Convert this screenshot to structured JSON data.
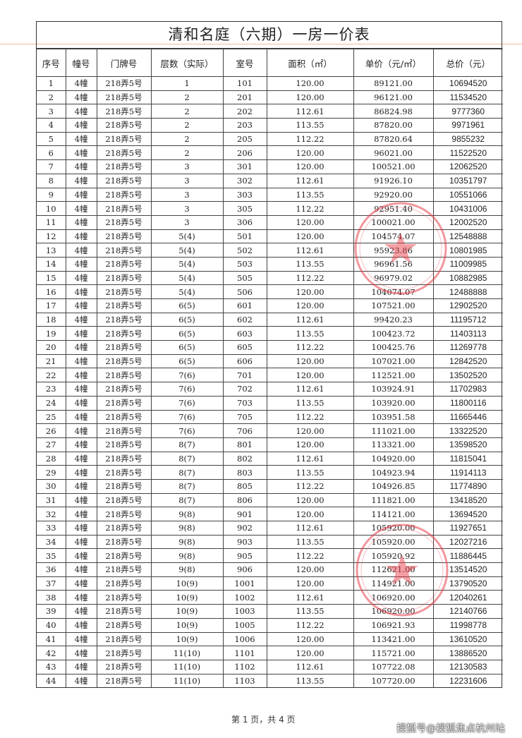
{
  "title": "清和名庭（六期）一房一价表",
  "columns": [
    "序号",
    "幢号",
    "门牌号",
    "层数（实际）",
    "室号",
    "面积（㎡）",
    "单价（元/㎡）",
    "总价（元）"
  ],
  "rows": [
    [
      "1",
      "4幢",
      "218弄5号",
      "1",
      "101",
      "120.00",
      "89121.00",
      "10694520"
    ],
    [
      "2",
      "4幢",
      "218弄5号",
      "2",
      "201",
      "120.00",
      "96121.00",
      "11534520"
    ],
    [
      "3",
      "4幢",
      "218弄5号",
      "2",
      "202",
      "112.61",
      "86824.98",
      "9777360"
    ],
    [
      "4",
      "4幢",
      "218弄5号",
      "2",
      "203",
      "113.55",
      "87820.00",
      "9971961"
    ],
    [
      "5",
      "4幢",
      "218弄5号",
      "2",
      "205",
      "112.22",
      "87820.64",
      "9855232"
    ],
    [
      "6",
      "4幢",
      "218弄5号",
      "2",
      "206",
      "120.00",
      "96021.00",
      "11522520"
    ],
    [
      "7",
      "4幢",
      "218弄5号",
      "3",
      "301",
      "120.00",
      "100521.00",
      "12062520"
    ],
    [
      "8",
      "4幢",
      "218弄5号",
      "3",
      "302",
      "112.61",
      "91926.10",
      "10351797"
    ],
    [
      "9",
      "4幢",
      "218弄5号",
      "3",
      "303",
      "113.55",
      "92920.00",
      "10551066"
    ],
    [
      "10",
      "4幢",
      "218弄5号",
      "3",
      "305",
      "112.22",
      "92951.40",
      "10431006"
    ],
    [
      "11",
      "4幢",
      "218弄5号",
      "3",
      "306",
      "120.00",
      "100021.00",
      "12002520"
    ],
    [
      "12",
      "4幢",
      "218弄5号",
      "5(4)",
      "501",
      "120.00",
      "104574.07",
      "12548888"
    ],
    [
      "13",
      "4幢",
      "218弄5号",
      "5(4)",
      "502",
      "112.61",
      "95923.86",
      "10801985"
    ],
    [
      "14",
      "4幢",
      "218弄5号",
      "5(4)",
      "503",
      "113.55",
      "96961.56",
      "11009985"
    ],
    [
      "15",
      "4幢",
      "218弄5号",
      "5(4)",
      "505",
      "112.22",
      "96979.02",
      "10882985"
    ],
    [
      "16",
      "4幢",
      "218弄5号",
      "5(4)",
      "506",
      "120.00",
      "104074.07",
      "12488888"
    ],
    [
      "17",
      "4幢",
      "218弄5号",
      "6(5)",
      "601",
      "120.00",
      "107521.00",
      "12902520"
    ],
    [
      "18",
      "4幢",
      "218弄5号",
      "6(5)",
      "602",
      "112.61",
      "99420.23",
      "11195712"
    ],
    [
      "19",
      "4幢",
      "218弄5号",
      "6(5)",
      "603",
      "113.55",
      "100423.72",
      "11403113"
    ],
    [
      "20",
      "4幢",
      "218弄5号",
      "6(5)",
      "605",
      "112.22",
      "100425.76",
      "11269778"
    ],
    [
      "21",
      "4幢",
      "218弄5号",
      "6(5)",
      "606",
      "120.00",
      "107021.00",
      "12842520"
    ],
    [
      "22",
      "4幢",
      "218弄5号",
      "7(6)",
      "701",
      "120.00",
      "112521.00",
      "13502520"
    ],
    [
      "23",
      "4幢",
      "218弄5号",
      "7(6)",
      "702",
      "112.61",
      "103924.91",
      "11702983"
    ],
    [
      "24",
      "4幢",
      "218弄5号",
      "7(6)",
      "703",
      "113.55",
      "103920.00",
      "11800116"
    ],
    [
      "25",
      "4幢",
      "218弄5号",
      "7(6)",
      "705",
      "112.22",
      "103951.58",
      "11665446"
    ],
    [
      "26",
      "4幢",
      "218弄5号",
      "7(6)",
      "706",
      "120.00",
      "111021.00",
      "13322520"
    ],
    [
      "27",
      "4幢",
      "218弄5号",
      "8(7)",
      "801",
      "120.00",
      "113321.00",
      "13598520"
    ],
    [
      "28",
      "4幢",
      "218弄5号",
      "8(7)",
      "802",
      "112.61",
      "104920.00",
      "11815041"
    ],
    [
      "29",
      "4幢",
      "218弄5号",
      "8(7)",
      "803",
      "113.55",
      "104923.94",
      "11914113"
    ],
    [
      "30",
      "4幢",
      "218弄5号",
      "8(7)",
      "805",
      "112.22",
      "104926.85",
      "11774890"
    ],
    [
      "31",
      "4幢",
      "218弄5号",
      "8(7)",
      "806",
      "120.00",
      "111821.00",
      "13418520"
    ],
    [
      "32",
      "4幢",
      "218弄5号",
      "9(8)",
      "901",
      "120.00",
      "114121.00",
      "13694520"
    ],
    [
      "33",
      "4幢",
      "218弄5号",
      "9(8)",
      "902",
      "112.61",
      "105920.00",
      "11927651"
    ],
    [
      "34",
      "4幢",
      "218弄5号",
      "9(8)",
      "903",
      "113.55",
      "105920.00",
      "12027216"
    ],
    [
      "35",
      "4幢",
      "218弄5号",
      "9(8)",
      "905",
      "112.22",
      "105920.92",
      "11886445"
    ],
    [
      "36",
      "4幢",
      "218弄5号",
      "9(8)",
      "906",
      "120.00",
      "112621.00",
      "13514520"
    ],
    [
      "37",
      "4幢",
      "218弄5号",
      "10(9)",
      "1001",
      "120.00",
      "114921.00",
      "13790520"
    ],
    [
      "38",
      "4幢",
      "218弄5号",
      "10(9)",
      "1002",
      "112.61",
      "106920.00",
      "12040261"
    ],
    [
      "39",
      "4幢",
      "218弄5号",
      "10(9)",
      "1003",
      "113.55",
      "106920.00",
      "12140766"
    ],
    [
      "40",
      "4幢",
      "218弄5号",
      "10(9)",
      "1005",
      "112.22",
      "106921.93",
      "11998778"
    ],
    [
      "41",
      "4幢",
      "218弄5号",
      "10(9)",
      "1006",
      "120.00",
      "113421.00",
      "13610520"
    ],
    [
      "42",
      "4幢",
      "218弄5号",
      "11(10)",
      "1101",
      "120.00",
      "115721.00",
      "13886520"
    ],
    [
      "43",
      "4幢",
      "218弄5号",
      "11(10)",
      "1102",
      "112.61",
      "107722.08",
      "12130583"
    ],
    [
      "44",
      "4幢",
      "218弄5号",
      "11(10)",
      "1103",
      "113.55",
      "107720.00",
      "12231606"
    ]
  ],
  "footer": {
    "page_info": "第 1 页，共 4 页",
    "watermark": "搜狐号@搜狐焦点杭州站"
  },
  "colors": {
    "stamp": "#e8404a",
    "scan_line": "#f4b79a"
  }
}
